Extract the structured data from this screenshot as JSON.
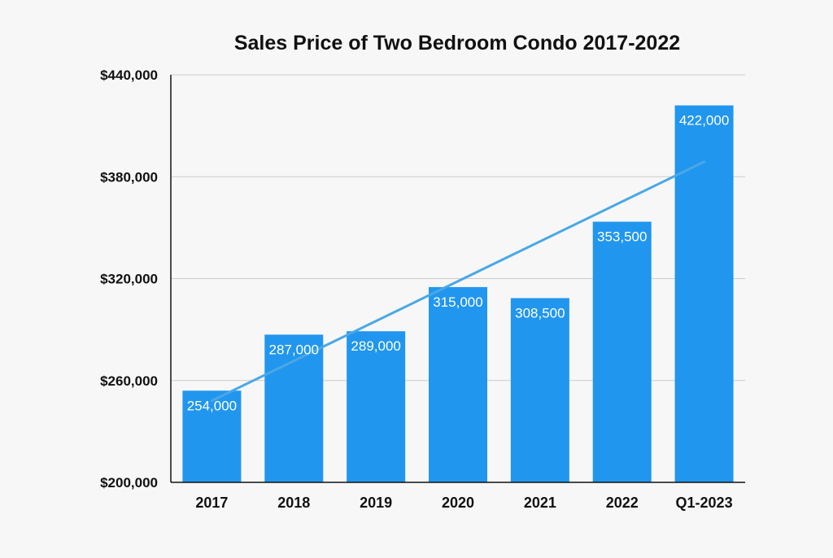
{
  "chart_data": {
    "type": "bar",
    "title": "Sales Price of Two Bedroom Condo 2017-2022",
    "xlabel": "",
    "ylabel": "",
    "categories": [
      "2017",
      "2018",
      "2019",
      "2020",
      "2021",
      "2022",
      "Q1-2023"
    ],
    "values": [
      254000,
      287000,
      289000,
      315000,
      308500,
      353500,
      422000
    ],
    "data_labels": [
      "254,000",
      "287,000",
      "289,000",
      "315,000",
      "308,500",
      "353,500",
      "422,000"
    ],
    "ylim": [
      200000,
      440000
    ],
    "yticks": [
      200000,
      260000,
      320000,
      380000,
      440000
    ],
    "ytick_labels": [
      "$200,000",
      "$260,000",
      "$320,000",
      "$380,000",
      "$440,000"
    ],
    "grid": true,
    "trendline": {
      "type": "linear"
    },
    "colors": {
      "bar": "#2196ee",
      "trendline": "#4aa8e6",
      "grid": "#cccccc"
    }
  }
}
